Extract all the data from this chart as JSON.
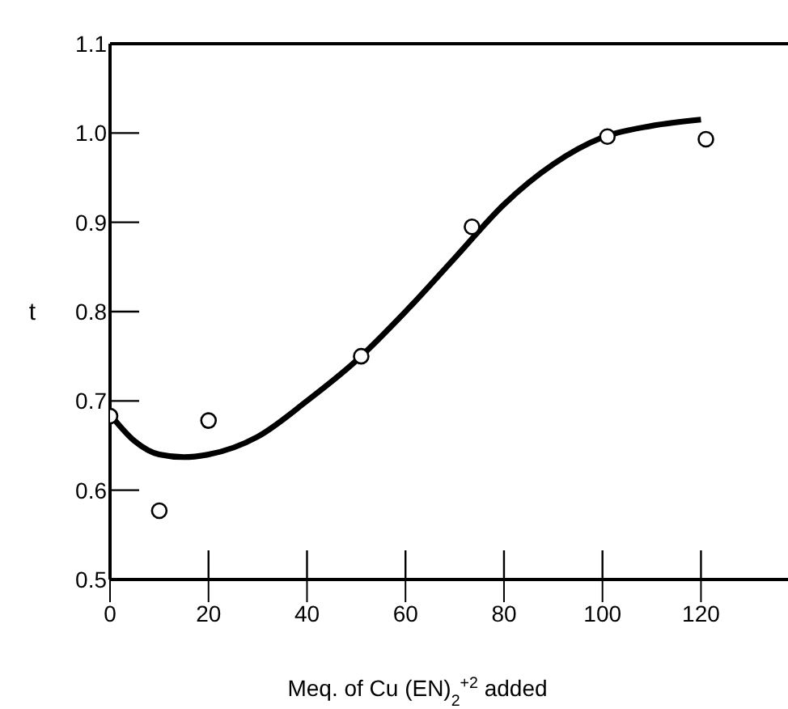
{
  "chart_data": {
    "type": "scatter",
    "xlabel": "Meq. of Cu (EN)$_{2}$$^{+2}$ added",
    "ylabel": "t",
    "xlim": [
      0,
      138
    ],
    "xticks": [
      0,
      20,
      40,
      60,
      80,
      100,
      120
    ],
    "ylim": [
      0.5,
      1.1
    ],
    "yticks": [
      0.5,
      0.6,
      0.7,
      0.8,
      0.9,
      {
        "value": 1,
        "label": "1.0"
      },
      1.1
    ],
    "grid": false,
    "legend": false,
    "series": [
      {
        "color": "#000000",
        "marker": "circle",
        "x": [
          0,
          10,
          20,
          51,
          73.5,
          101,
          121
        ],
        "values": [
          0.683,
          0.577,
          0.678,
          0.75,
          0.895,
          0.996,
          0.993
        ]
      },
      {
        "type": "line",
        "color": "#000000",
        "marker": "none",
        "line_style": "solid",
        "x": [
          0,
          5,
          10,
          15,
          20,
          30,
          40,
          50,
          60,
          70,
          80,
          90,
          100,
          110,
          120
        ],
        "values": [
          0.685,
          0.655,
          0.64,
          0.637,
          0.64,
          0.66,
          0.7,
          0.745,
          0.8,
          0.86,
          0.92,
          0.965,
          0.995,
          1.008,
          1.015
        ]
      }
    ]
  }
}
